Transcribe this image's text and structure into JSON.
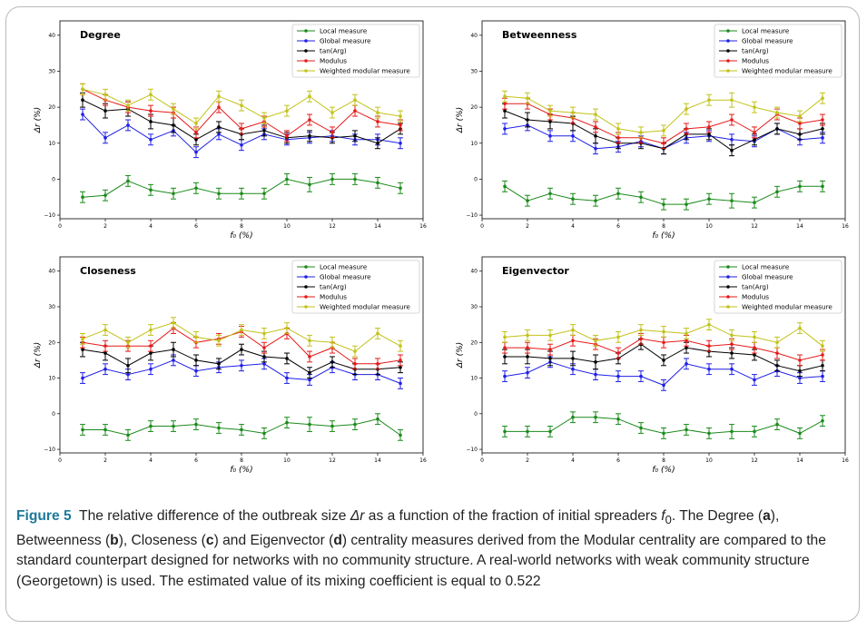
{
  "caption": {
    "label": "Figure 5",
    "p1": "The relative difference of the outbreak size ",
    "delta_r": "Δr",
    "p2": " as a function of the fraction of initial spreaders ",
    "f0": "f",
    "f0_sub": "0",
    "p3": ". The Degree (",
    "a": "a",
    "p4": "), Betweenness (",
    "b": "b",
    "p5": "), Closeness (",
    "c": "c",
    "p6": ") and Eigenvector (",
    "d": "d",
    "p7": ") centrality measures derived from the Modular centrality are compared to the standard counterpart designed for networks with no community structure. A real-world networks with weak community structure (Georgetown) is used. The estimated value of its mixing coefficient is equal to 0.522"
  },
  "colors": {
    "Local measure": "#1a8a1a",
    "Global measure": "#1f1fe6",
    "tan(Arg)": "#000000",
    "Modulus": "#e61a1a",
    "Weighted modular measure": "#c2c21a"
  },
  "chart_data": [
    {
      "type": "line",
      "title": "Degree",
      "xlabel": "f₀ (%)",
      "ylabel": "Δr (%)",
      "xlim": [
        0,
        16
      ],
      "ylim": [
        -11,
        44
      ],
      "xticks": [
        "0",
        "2",
        "4",
        "6",
        "8",
        "10",
        "12",
        "14",
        "16"
      ],
      "yticks": [
        "−10",
        "0",
        "10",
        "20",
        "30",
        "40"
      ],
      "legend_position": "top-right",
      "x": [
        1,
        2,
        3,
        4,
        5,
        6,
        7,
        8,
        9,
        10,
        11,
        12,
        13,
        14,
        15
      ],
      "series": [
        {
          "name": "Local measure",
          "values": [
            -5,
            -4.5,
            -0.5,
            -3,
            -4,
            -2.5,
            -4,
            -4,
            -4,
            0,
            -1.5,
            0,
            0,
            -1,
            -2.5
          ],
          "err": [
            1.5,
            1.5,
            1.5,
            1.5,
            1.5,
            1.5,
            1.5,
            1.5,
            1.5,
            1.5,
            2,
            1.5,
            1.5,
            1.5,
            1.5
          ]
        },
        {
          "name": "Global measure",
          "values": [
            18,
            11.5,
            15,
            11,
            13.5,
            7.5,
            12.5,
            9.5,
            12.5,
            11,
            11.5,
            12,
            11,
            11,
            10
          ],
          "err": [
            1.5,
            1.5,
            1.5,
            1.5,
            1.5,
            1.5,
            1.5,
            1.5,
            1.5,
            1.5,
            1.5,
            1.5,
            1.5,
            1.5,
            1.5
          ]
        },
        {
          "name": "tan(Arg)",
          "values": [
            22,
            19,
            19.5,
            16,
            15,
            11,
            14.5,
            12.5,
            13.5,
            11.5,
            12,
            11.5,
            12,
            10,
            14
          ],
          "err": [
            2,
            2,
            2,
            2,
            2,
            1.5,
            1.5,
            1.5,
            1.5,
            1.5,
            1.5,
            1.5,
            1.5,
            1.5,
            1.5
          ]
        },
        {
          "name": "Modulus",
          "values": [
            25,
            22,
            20,
            19,
            18.5,
            13,
            20,
            14,
            16,
            12,
            16.5,
            13,
            19,
            16,
            15
          ],
          "err": [
            1.5,
            1.5,
            1.5,
            1.5,
            1.5,
            1.5,
            1.5,
            1.5,
            1.5,
            1.5,
            1.5,
            1.5,
            1.5,
            1.5,
            1.5
          ]
        },
        {
          "name": "Weighted modular measure",
          "values": [
            25,
            23.5,
            20.5,
            23.5,
            19.5,
            15.5,
            23,
            20.5,
            17,
            19,
            23,
            18.5,
            22,
            18.5,
            17.5
          ],
          "err": [
            1.5,
            1.5,
            1.5,
            1.5,
            1.5,
            1.5,
            1.5,
            1.5,
            1.5,
            1.5,
            1.5,
            1.5,
            1.5,
            1.5,
            1.5
          ]
        }
      ]
    },
    {
      "type": "line",
      "title": "Betweenness",
      "xlabel": "f₀ (%)",
      "ylabel": "Δr (%)",
      "xlim": [
        0,
        16
      ],
      "ylim": [
        -11,
        44
      ],
      "xticks": [
        "0",
        "2",
        "4",
        "6",
        "8",
        "10",
        "12",
        "14",
        "16"
      ],
      "yticks": [
        "−10",
        "0",
        "10",
        "20",
        "30",
        "40"
      ],
      "legend_position": "top-right",
      "x": [
        1,
        2,
        3,
        4,
        5,
        6,
        7,
        8,
        9,
        10,
        11,
        12,
        13,
        14,
        15
      ],
      "series": [
        {
          "name": "Local measure",
          "values": [
            -2,
            -6,
            -4,
            -5.5,
            -6,
            -4,
            -5,
            -7,
            -7,
            -5.5,
            -6,
            -6.5,
            -3.5,
            -2,
            -2
          ],
          "err": [
            1.5,
            1.5,
            1.5,
            1.5,
            1.5,
            1.5,
            1.5,
            1.5,
            1.5,
            1.5,
            2,
            1.5,
            1.5,
            1.5,
            1.5
          ]
        },
        {
          "name": "Global measure",
          "values": [
            14,
            15,
            12,
            12,
            8.5,
            9,
            10.5,
            8.5,
            11.5,
            12,
            11,
            10.5,
            14,
            11,
            11.5
          ],
          "err": [
            1.5,
            1.5,
            1.5,
            1.5,
            1.5,
            1.5,
            1.5,
            1.5,
            1.5,
            1.5,
            1.5,
            1.5,
            1.5,
            1.5,
            1.5
          ]
        },
        {
          "name": "tan(Arg)",
          "values": [
            19,
            16.5,
            16,
            15.5,
            12,
            10,
            10,
            8.5,
            12.5,
            12.5,
            8,
            11,
            14,
            12.5,
            14
          ],
          "err": [
            2,
            2,
            2,
            2,
            2,
            1.5,
            1.5,
            1.5,
            1.5,
            1.5,
            1.5,
            1.5,
            1.5,
            1.5,
            1.5
          ]
        },
        {
          "name": "Modulus",
          "values": [
            21,
            21,
            18,
            17,
            14.5,
            11.5,
            11.5,
            10,
            14,
            14.5,
            16.5,
            13,
            18,
            15.5,
            16.5
          ],
          "err": [
            1.5,
            1.5,
            1.5,
            1.5,
            1.5,
            1.5,
            1.5,
            1.5,
            1.5,
            1.5,
            1.5,
            1.5,
            1.5,
            1.5,
            1.5
          ]
        },
        {
          "name": "Weighted modular measure",
          "values": [
            23,
            22.5,
            19,
            18.5,
            18,
            14,
            13,
            13.5,
            19.5,
            22,
            22,
            20,
            18.5,
            17.5,
            22.5
          ],
          "err": [
            1.5,
            1.5,
            1.5,
            1.5,
            1.5,
            1.5,
            1.5,
            1.5,
            1.5,
            1.5,
            2,
            1.5,
            1.5,
            1.5,
            1.5
          ]
        }
      ]
    },
    {
      "type": "line",
      "title": "Closeness",
      "xlabel": "f₀ (%)",
      "ylabel": "Δr (%)",
      "xlim": [
        0,
        16
      ],
      "ylim": [
        -11,
        44
      ],
      "xticks": [
        "0",
        "2",
        "4",
        "6",
        "8",
        "10",
        "12",
        "14",
        "16"
      ],
      "yticks": [
        "−10",
        "0",
        "10",
        "20",
        "30",
        "40"
      ],
      "legend_position": "top-right",
      "x": [
        1,
        2,
        3,
        4,
        5,
        6,
        7,
        8,
        9,
        10,
        11,
        12,
        13,
        14,
        15
      ],
      "series": [
        {
          "name": "Local measure",
          "values": [
            -4.5,
            -4.5,
            -6,
            -3.5,
            -3.5,
            -3,
            -4,
            -4.5,
            -5.5,
            -2.5,
            -3,
            -3.5,
            -3,
            -1.5,
            -6
          ],
          "err": [
            1.5,
            1.5,
            1.5,
            1.5,
            1.5,
            1.5,
            1.5,
            1.5,
            1.5,
            1.5,
            2,
            1.5,
            1.5,
            1.5,
            1.5
          ]
        },
        {
          "name": "Global measure",
          "values": [
            10,
            12.5,
            11,
            12.5,
            15,
            12,
            13,
            13.5,
            14,
            10,
            9.5,
            13,
            11,
            11,
            8.5
          ],
          "err": [
            1.5,
            1.5,
            1.5,
            1.5,
            1.5,
            1.5,
            1.5,
            1.5,
            1.5,
            1.5,
            1.5,
            1.5,
            1.5,
            1.5,
            1.5
          ]
        },
        {
          "name": "tan(Arg)",
          "values": [
            18,
            17,
            13.5,
            17,
            18,
            15,
            14,
            18,
            16,
            15.5,
            11.5,
            14.5,
            12.5,
            12.5,
            13
          ],
          "err": [
            2,
            2,
            2,
            2,
            2,
            1.5,
            1.5,
            1.5,
            1.5,
            1.5,
            1.5,
            1.5,
            1.5,
            1.5,
            1.5
          ]
        },
        {
          "name": "Modulus",
          "values": [
            20,
            19,
            19,
            19,
            24,
            20,
            21,
            23,
            18.5,
            22.5,
            16,
            18.5,
            14,
            14,
            15
          ],
          "err": [
            1.5,
            1.5,
            1.5,
            1.5,
            1.5,
            1.5,
            1.5,
            1.5,
            1.5,
            1.5,
            1.5,
            1.5,
            1.5,
            1.5,
            1.5
          ]
        },
        {
          "name": "Weighted modular measure",
          "values": [
            21,
            23.5,
            20,
            23.5,
            25.5,
            21.5,
            20.5,
            23.5,
            22.5,
            24,
            20.5,
            20,
            17.5,
            22.5,
            19
          ],
          "err": [
            1.5,
            1.5,
            1.5,
            1.5,
            1.5,
            1.5,
            1.5,
            1.5,
            1.5,
            1.5,
            1.5,
            1.5,
            1.5,
            1.5,
            1.5
          ]
        }
      ]
    },
    {
      "type": "line",
      "title": "Eigenvector",
      "xlabel": "f₀ (%)",
      "ylabel": "Δr (%)",
      "xlim": [
        0,
        16
      ],
      "ylim": [
        -11,
        44
      ],
      "xticks": [
        "0",
        "2",
        "4",
        "6",
        "8",
        "10",
        "12",
        "14",
        "16"
      ],
      "yticks": [
        "−10",
        "0",
        "10",
        "20",
        "30",
        "40"
      ],
      "legend_position": "top-right",
      "x": [
        1,
        2,
        3,
        4,
        5,
        6,
        7,
        8,
        9,
        10,
        11,
        12,
        13,
        14,
        15
      ],
      "series": [
        {
          "name": "Local measure",
          "values": [
            -5,
            -5,
            -5,
            -1,
            -1,
            -1.5,
            -4,
            -5.5,
            -4.5,
            -5.5,
            -5,
            -5,
            -3,
            -5.5,
            -2
          ],
          "err": [
            1.5,
            1.5,
            1.5,
            1.5,
            1.5,
            1.5,
            1.5,
            1.5,
            1.5,
            1.5,
            2,
            1.5,
            1.5,
            1.5,
            1.5
          ]
        },
        {
          "name": "Global measure",
          "values": [
            10.5,
            11.5,
            14.5,
            12.5,
            11,
            10.5,
            10.5,
            8,
            14,
            12.5,
            12.5,
            9.5,
            12,
            10,
            10.5
          ],
          "err": [
            1.5,
            1.5,
            1.5,
            1.5,
            1.5,
            1.5,
            1.5,
            1.5,
            1.5,
            1.5,
            1.5,
            1.5,
            1.5,
            1.5,
            1.5
          ]
        },
        {
          "name": "tan(Arg)",
          "values": [
            16,
            16,
            15.5,
            15.5,
            14.5,
            15.5,
            19.5,
            15,
            18.5,
            17.5,
            17,
            16.5,
            13.5,
            12,
            13.5
          ],
          "err": [
            2,
            2,
            2,
            2,
            2,
            1.5,
            1.5,
            1.5,
            1.5,
            1.5,
            1.5,
            1.5,
            1.5,
            1.5,
            1.5
          ]
        },
        {
          "name": "Modulus",
          "values": [
            18.5,
            18.5,
            18,
            20.5,
            19.5,
            17,
            21,
            20,
            20.5,
            19,
            19.5,
            18.5,
            17,
            15,
            16.5
          ],
          "err": [
            1.5,
            1.5,
            1.5,
            1.5,
            1.5,
            1.5,
            1.5,
            1.5,
            1.5,
            1.5,
            1.5,
            1.5,
            1.5,
            1.5,
            1.5
          ]
        },
        {
          "name": "Weighted modular measure",
          "values": [
            21.5,
            22,
            22,
            23.5,
            20.5,
            21.5,
            23.5,
            23,
            22.5,
            25,
            22,
            21.5,
            20,
            24,
            19
          ],
          "err": [
            1.5,
            1.5,
            1.5,
            1.5,
            1.5,
            1.5,
            1.5,
            1.5,
            1.5,
            1.5,
            1.5,
            1.5,
            1.5,
            1.5,
            1.5
          ]
        }
      ]
    }
  ]
}
